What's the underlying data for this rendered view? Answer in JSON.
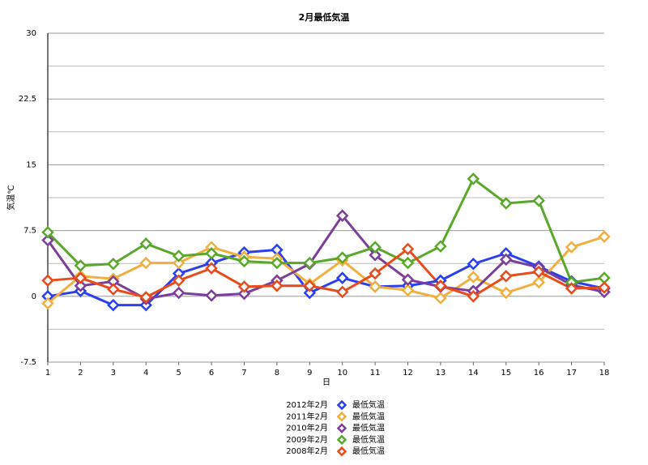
{
  "chart_data": {
    "type": "line",
    "title": "2月最低気温",
    "x_label": "日",
    "y_label": "気温℃",
    "measure": "最低気温",
    "x": [
      1,
      2,
      3,
      4,
      5,
      6,
      7,
      8,
      9,
      10,
      11,
      12,
      13,
      14,
      15,
      16,
      17,
      18
    ],
    "xlim": [
      1,
      18
    ],
    "xticks": [
      1,
      2,
      3,
      4,
      5,
      6,
      7,
      8,
      9,
      10,
      11,
      12,
      13,
      14,
      15,
      16,
      17,
      18
    ],
    "ylim": [
      -7.5,
      30
    ],
    "yticks": [
      -7.5,
      0,
      7.5,
      15,
      22.5,
      30
    ],
    "y_minor_ticks": [
      -3.75,
      3.75,
      11.25,
      18.75,
      26.25
    ],
    "grid": true,
    "series": [
      {
        "name": "2012年2月",
        "color": "#2b3ff0",
        "values": [
          0,
          0.6,
          -1.0,
          -1.0,
          2.6,
          3.8,
          5.0,
          5.3,
          0.4,
          2.1,
          1.1,
          1.2,
          1.8,
          3.7,
          4.9,
          3.4,
          1.7,
          0.9
        ]
      },
      {
        "name": "2011年2月",
        "color": "#f0b040",
        "values": [
          -0.8,
          2.3,
          2.0,
          3.8,
          3.8,
          5.6,
          4.5,
          4.3,
          1.4,
          4.1,
          1.1,
          0.7,
          -0.2,
          2.2,
          0.4,
          1.6,
          5.6,
          6.8
        ]
      },
      {
        "name": "2010年2月",
        "color": "#7a3f98",
        "values": [
          6.4,
          1.2,
          1.7,
          -0.3,
          0.4,
          0.1,
          0.3,
          1.8,
          3.7,
          9.2,
          4.7,
          1.9,
          1.1,
          0.6,
          4.2,
          3.3,
          1.3,
          0.5
        ]
      },
      {
        "name": "2009年2月",
        "color": "#5aa82a",
        "values": [
          7.3,
          3.5,
          3.7,
          6.0,
          4.6,
          4.9,
          4.0,
          3.8,
          3.8,
          4.4,
          5.6,
          3.8,
          5.7,
          13.4,
          10.6,
          10.9,
          1.6,
          2.1
        ]
      },
      {
        "name": "2008年2月",
        "color": "#ea4b1c",
        "values": [
          1.8,
          2.1,
          0.8,
          -0.1,
          1.8,
          3.2,
          1.1,
          1.2,
          1.2,
          0.5,
          2.6,
          5.4,
          1.2,
          0,
          2.3,
          2.8,
          0.9,
          1.0
        ]
      }
    ]
  }
}
